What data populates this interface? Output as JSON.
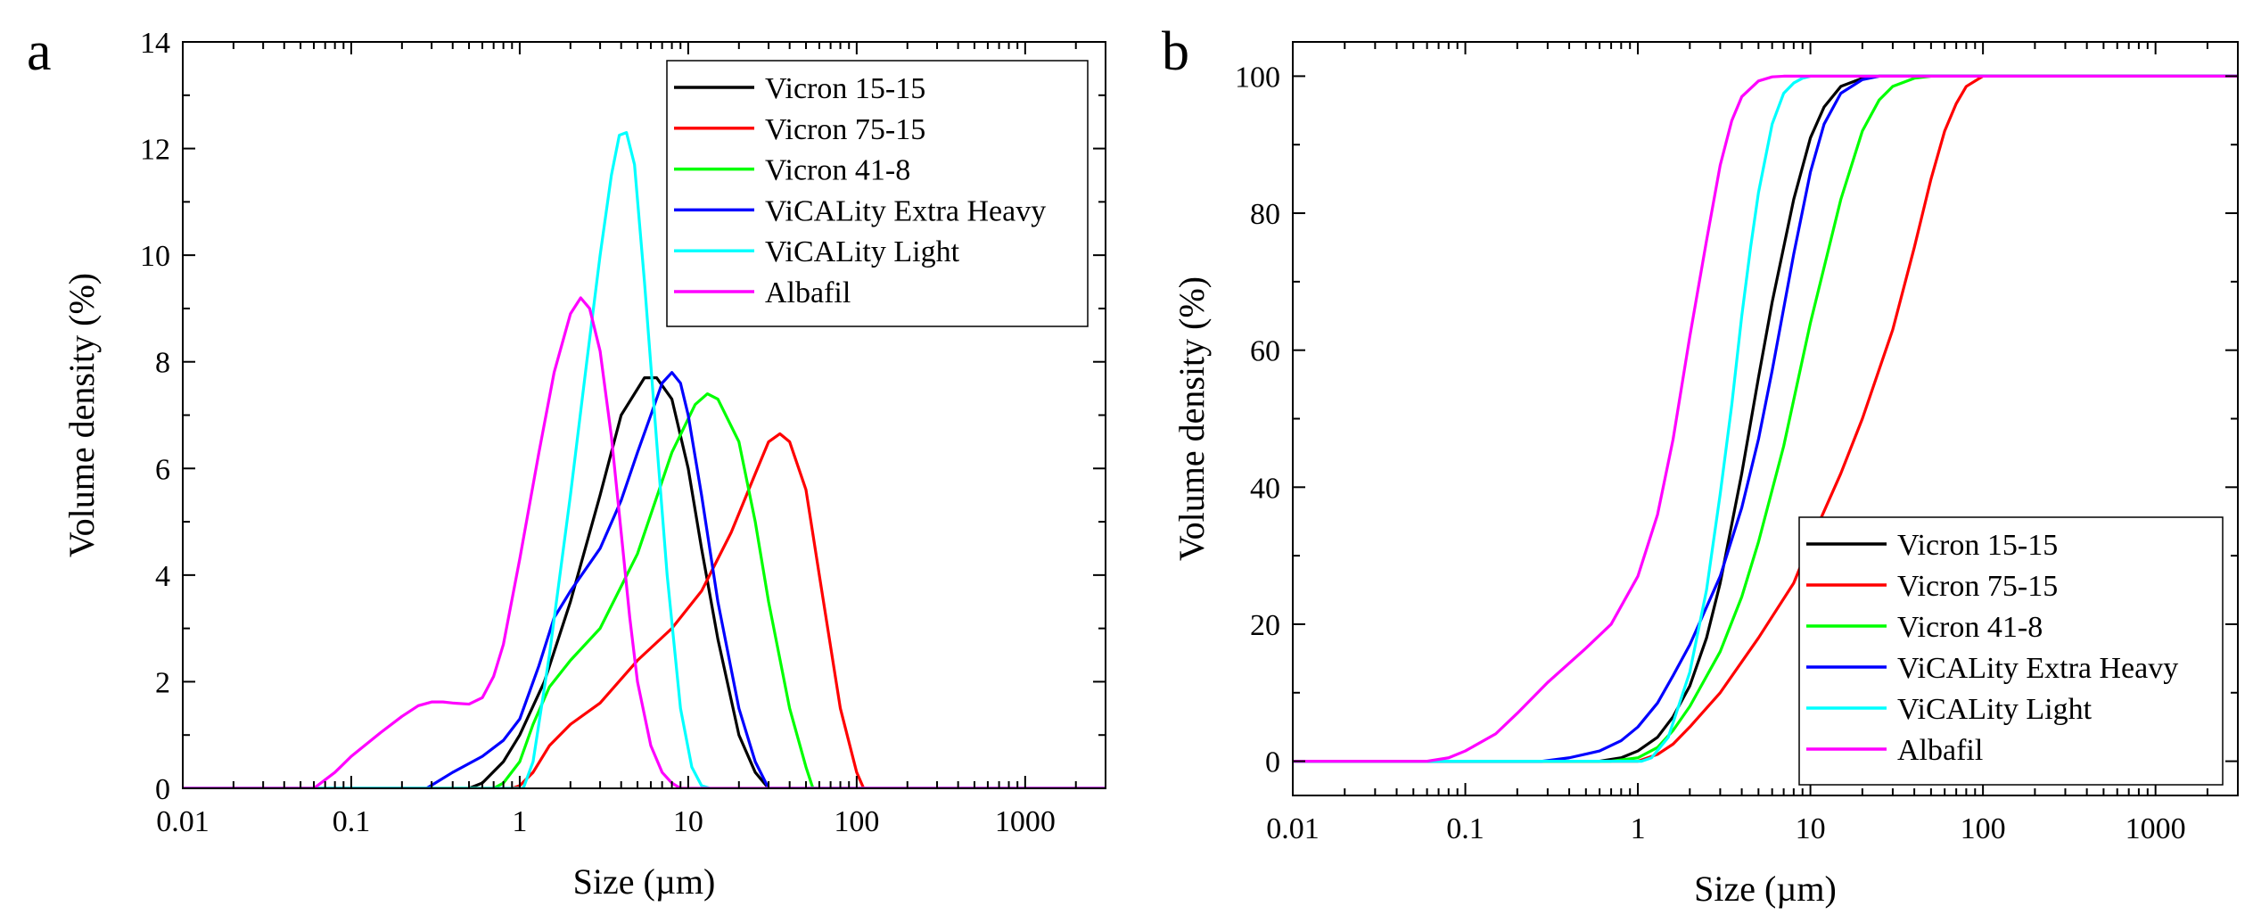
{
  "chart_data": [
    {
      "panel": "a",
      "type": "line",
      "xscale": "log",
      "xlabel": "Size (µm)",
      "ylabel": "Volume density (%)",
      "xlim": [
        0.01,
        3000
      ],
      "ylim": [
        0,
        14
      ],
      "xticks": [
        0.01,
        0.1,
        1,
        10,
        100,
        1000
      ],
      "xtick_labels": [
        "0.01",
        "0.1",
        "1",
        "10",
        "100",
        "1000"
      ],
      "yticks": [
        0,
        2,
        4,
        6,
        8,
        10,
        12,
        14
      ],
      "ytick_labels": [
        "0",
        "2",
        "4",
        "6",
        "8",
        "10",
        "12",
        "14"
      ],
      "legend_position": "top-right",
      "series": [
        {
          "name": "Vicron 15-15",
          "color": "#000000",
          "x": [
            0.01,
            0.5,
            0.6,
            0.8,
            1.0,
            1.4,
            2.0,
            3.0,
            4.0,
            5.5,
            6.5,
            8.0,
            10.0,
            12.0,
            15.0,
            20.0,
            25.0,
            30.0,
            3000
          ],
          "y": [
            0,
            0,
            0.1,
            0.5,
            1.0,
            2.0,
            3.5,
            5.5,
            7.0,
            7.7,
            7.7,
            7.3,
            6.0,
            4.5,
            2.8,
            1.0,
            0.3,
            0,
            0
          ]
        },
        {
          "name": "Vicron 75-15",
          "color": "#ff0000",
          "x": [
            0.01,
            0.9,
            1.0,
            1.2,
            1.5,
            2.0,
            3.0,
            5.0,
            8.0,
            12.0,
            18.0,
            25.0,
            30.0,
            35.0,
            40.0,
            50.0,
            60.0,
            80.0,
            100.0,
            110.0,
            3000
          ],
          "y": [
            0,
            0,
            0.05,
            0.3,
            0.8,
            1.2,
            1.6,
            2.4,
            3.0,
            3.7,
            4.8,
            5.9,
            6.5,
            6.65,
            6.5,
            5.6,
            4.0,
            1.5,
            0.3,
            0,
            0
          ]
        },
        {
          "name": "Vicron 41-8",
          "color": "#00ff00",
          "x": [
            0.01,
            0.7,
            0.8,
            1.0,
            1.2,
            1.5,
            2.0,
            3.0,
            5.0,
            8.0,
            11.0,
            13.0,
            15.0,
            20.0,
            25.0,
            30.0,
            40.0,
            50.0,
            55.0,
            3000
          ],
          "y": [
            0,
            0,
            0.1,
            0.5,
            1.2,
            1.9,
            2.4,
            3.0,
            4.4,
            6.3,
            7.2,
            7.4,
            7.3,
            6.5,
            5.0,
            3.5,
            1.5,
            0.4,
            0,
            0
          ]
        },
        {
          "name": "ViCALity Extra Heavy",
          "color": "#0000ff",
          "x": [
            0.01,
            0.28,
            0.4,
            0.6,
            0.8,
            1.0,
            1.3,
            1.6,
            2.0,
            3.0,
            4.0,
            5.0,
            6.0,
            7.0,
            8.0,
            9.0,
            10.0,
            12.0,
            15.0,
            20.0,
            25.0,
            30.0,
            3000
          ],
          "y": [
            0,
            0,
            0.3,
            0.6,
            0.9,
            1.3,
            2.3,
            3.2,
            3.7,
            4.5,
            5.4,
            6.3,
            7.0,
            7.6,
            7.8,
            7.6,
            7.0,
            5.5,
            3.5,
            1.5,
            0.5,
            0,
            0
          ]
        },
        {
          "name": "ViCALity Light",
          "color": "#00ffff",
          "x": [
            0.01,
            1.05,
            1.2,
            1.5,
            2.0,
            2.5,
            3.0,
            3.5,
            3.9,
            4.3,
            4.8,
            5.5,
            6.5,
            7.5,
            9.0,
            10.5,
            12.0,
            13.5,
            3000
          ],
          "y": [
            0,
            0,
            0.5,
            2.5,
            5.5,
            8.0,
            10.0,
            11.5,
            12.25,
            12.3,
            11.7,
            9.5,
            6.5,
            4.0,
            1.5,
            0.4,
            0.05,
            0,
            0
          ]
        },
        {
          "name": "Albafil",
          "color": "#ff00ff",
          "x": [
            0.01,
            0.06,
            0.08,
            0.1,
            0.15,
            0.2,
            0.25,
            0.3,
            0.35,
            0.4,
            0.5,
            0.6,
            0.7,
            0.8,
            1.0,
            1.3,
            1.6,
            2.0,
            2.3,
            2.6,
            3.0,
            3.5,
            4.0,
            4.5,
            5.0,
            6.0,
            7.0,
            8.0,
            9.0,
            3000
          ],
          "y": [
            0,
            0,
            0.3,
            0.6,
            1.05,
            1.35,
            1.55,
            1.62,
            1.62,
            1.6,
            1.58,
            1.7,
            2.1,
            2.7,
            4.3,
            6.3,
            7.8,
            8.9,
            9.2,
            9.0,
            8.2,
            6.6,
            4.8,
            3.2,
            2.0,
            0.8,
            0.3,
            0.1,
            0,
            0
          ]
        }
      ],
      "legend": [
        {
          "name": "Vicron 15-15",
          "color": "#000000"
        },
        {
          "name": "Vicron 75-15",
          "color": "#ff0000"
        },
        {
          "name": "Vicron 41-8",
          "color": "#00ff00"
        },
        {
          "name": "ViCALity Extra Heavy",
          "color": "#0000ff"
        },
        {
          "name": "ViCALity Light",
          "color": "#00ffff"
        },
        {
          "name": "Albafil",
          "color": "#ff00ff"
        }
      ]
    },
    {
      "panel": "b",
      "type": "line",
      "xscale": "log",
      "xlabel": "Size (µm)",
      "ylabel": "Volume density (%)",
      "xlim": [
        0.01,
        3000
      ],
      "ylim": [
        -5,
        105
      ],
      "xticks": [
        0.01,
        0.1,
        1,
        10,
        100,
        1000
      ],
      "xtick_labels": [
        "0.01",
        "0.1",
        "1",
        "10",
        "100",
        "1000"
      ],
      "yticks": [
        0,
        20,
        40,
        60,
        80,
        100
      ],
      "ytick_labels": [
        "0",
        "20",
        "40",
        "60",
        "80",
        "100"
      ],
      "legend_position": "bottom-right",
      "series": [
        {
          "name": "Vicron 15-15",
          "color": "#000000",
          "x": [
            0.01,
            0.6,
            0.8,
            1.0,
            1.3,
            1.6,
            2.0,
            2.5,
            3.0,
            4.0,
            5.0,
            6.0,
            8.0,
            10.0,
            12.0,
            15.0,
            20.0,
            25.0,
            3000
          ],
          "y": [
            0,
            0,
            0.5,
            1.5,
            3.5,
            6.5,
            11.0,
            18.0,
            26.0,
            42.0,
            56.0,
            67.0,
            82.0,
            91.0,
            95.5,
            98.5,
            99.7,
            100,
            100
          ]
        },
        {
          "name": "Vicron 75-15",
          "color": "#ff0000",
          "x": [
            0.01,
            1.0,
            1.3,
            1.6,
            2.0,
            3.0,
            5.0,
            8.0,
            10.0,
            15.0,
            20.0,
            30.0,
            40.0,
            50.0,
            60.0,
            70.0,
            80.0,
            100.0,
            3000
          ],
          "y": [
            0,
            0,
            1.0,
            2.5,
            5.0,
            10.0,
            18.0,
            26.0,
            32.0,
            42.0,
            50.0,
            63.0,
            75.0,
            85.0,
            92.0,
            96.0,
            98.5,
            100,
            100
          ]
        },
        {
          "name": "Vicron 41-8",
          "color": "#00ff00",
          "x": [
            0.01,
            0.7,
            1.0,
            1.3,
            1.6,
            2.0,
            3.0,
            4.0,
            5.0,
            7.0,
            10.0,
            15.0,
            20.0,
            25.0,
            30.0,
            40.0,
            50.0,
            3000
          ],
          "y": [
            0,
            0,
            0.5,
            2.0,
            4.5,
            8.0,
            16.0,
            24.0,
            32.0,
            46.0,
            64.0,
            82.0,
            92.0,
            96.5,
            98.5,
            99.7,
            100,
            100
          ]
        },
        {
          "name": "ViCALity Extra Heavy",
          "color": "#0000ff",
          "x": [
            0.01,
            0.28,
            0.4,
            0.6,
            0.8,
            1.0,
            1.3,
            1.6,
            2.0,
            3.0,
            4.0,
            5.0,
            6.0,
            8.0,
            10.0,
            12.0,
            15.0,
            20.0,
            25.0,
            3000
          ],
          "y": [
            0,
            0,
            0.5,
            1.5,
            3.0,
            5.0,
            8.5,
            12.5,
            17.0,
            27.0,
            37.0,
            47.0,
            57.0,
            74.0,
            86.0,
            93.0,
            97.5,
            99.5,
            100,
            100
          ]
        },
        {
          "name": "ViCALity Light",
          "color": "#00ffff",
          "x": [
            0.01,
            1.05,
            1.2,
            1.5,
            2.0,
            2.5,
            3.0,
            3.5,
            4.0,
            4.5,
            5.0,
            6.0,
            7.0,
            8.0,
            9.0,
            10.0,
            12.0,
            13.5,
            3000
          ],
          "y": [
            0,
            0,
            0.5,
            3.5,
            13.0,
            25.0,
            39.0,
            52.0,
            65.0,
            75.0,
            83.0,
            93.0,
            97.5,
            99.0,
            99.7,
            100,
            100,
            100,
            100
          ]
        },
        {
          "name": "Albafil",
          "color": "#ff00ff",
          "x": [
            0.01,
            0.06,
            0.08,
            0.1,
            0.15,
            0.2,
            0.3,
            0.5,
            0.7,
            1.0,
            1.3,
            1.6,
            2.0,
            2.5,
            3.0,
            3.5,
            4.0,
            5.0,
            6.0,
            7.0,
            8.0,
            3000
          ],
          "y": [
            0,
            0,
            0.5,
            1.5,
            4.0,
            7.0,
            11.5,
            16.5,
            20.0,
            27.0,
            36.0,
            47.0,
            62.0,
            76.0,
            87.0,
            93.5,
            97.0,
            99.3,
            99.9,
            100,
            100,
            100
          ]
        }
      ],
      "legend": [
        {
          "name": "Vicron 15-15",
          "color": "#000000"
        },
        {
          "name": "Vicron 75-15",
          "color": "#ff0000"
        },
        {
          "name": "Vicron 41-8",
          "color": "#00ff00"
        },
        {
          "name": "ViCALity Extra Heavy",
          "color": "#0000ff"
        },
        {
          "name": "ViCALity Light",
          "color": "#00ffff"
        },
        {
          "name": "Albafil",
          "color": "#ff00ff"
        }
      ]
    }
  ]
}
